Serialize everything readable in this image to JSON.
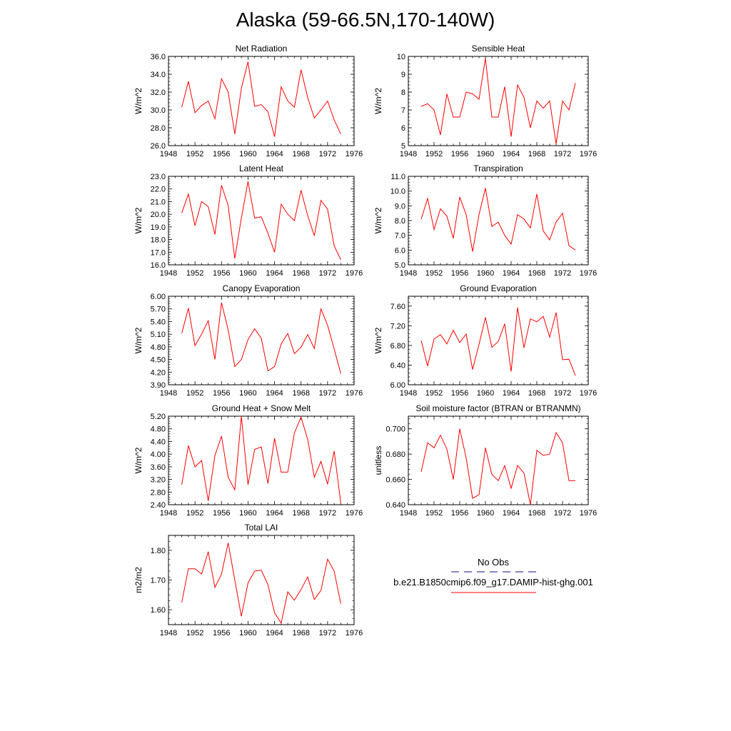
{
  "title": "Alaska (59-66.5N,170-140W)",
  "legend": {
    "items": [
      {
        "label": "No Obs",
        "color": "#3c3ca0",
        "style": "dashed"
      },
      {
        "label": "b.e21.B1850cmip6.f09_g17.DAMIP-hist-ghg.001",
        "color": "#ff0000",
        "style": "solid"
      }
    ]
  },
  "chart_data": [
    {
      "type": "line",
      "title": "Net Radiation",
      "ylabel": "W/m^2",
      "xlim": [
        1948,
        1976
      ],
      "ylim": [
        26.0,
        36.0
      ],
      "xticks": [
        "1948",
        "1952",
        "1956",
        "1960",
        "1964",
        "1968",
        "1972",
        "1976"
      ],
      "yticks": [
        "26.0",
        "28.0",
        "30.0",
        "32.0",
        "34.0",
        "36.0"
      ],
      "series": [
        {
          "color": "#ff0000",
          "x": [
            1950,
            1951,
            1952,
            1953,
            1954,
            1955,
            1956,
            1957,
            1958,
            1959,
            1960,
            1961,
            1962,
            1963,
            1964,
            1965,
            1966,
            1967,
            1968,
            1969,
            1970,
            1971,
            1972,
            1973,
            1974
          ],
          "values": [
            30.3,
            33.2,
            29.7,
            30.5,
            31.0,
            29.0,
            33.5,
            32.0,
            27.3,
            32.4,
            35.4,
            30.4,
            30.6,
            29.8,
            27.0,
            32.6,
            31.0,
            30.3,
            34.5,
            31.4,
            29.1,
            30.0,
            31.0,
            28.9,
            27.3
          ]
        }
      ]
    },
    {
      "type": "line",
      "title": "Sensible Heat",
      "ylabel": "W/m^2",
      "xlim": [
        1948,
        1976
      ],
      "ylim": [
        5,
        10
      ],
      "xticks": [
        "1948",
        "1952",
        "1956",
        "1960",
        "1964",
        "1968",
        "1972",
        "1976"
      ],
      "yticks": [
        "5",
        "6",
        "7",
        "8",
        "9",
        "10"
      ],
      "series": [
        {
          "color": "#ff0000",
          "x": [
            1950,
            1951,
            1952,
            1953,
            1954,
            1955,
            1956,
            1957,
            1958,
            1959,
            1960,
            1961,
            1962,
            1963,
            1964,
            1965,
            1966,
            1967,
            1968,
            1969,
            1970,
            1971,
            1972,
            1973,
            1974
          ],
          "values": [
            7.2,
            7.35,
            7.0,
            5.6,
            7.9,
            6.6,
            6.6,
            8.0,
            7.9,
            7.6,
            9.9,
            6.6,
            6.6,
            8.3,
            5.5,
            8.4,
            7.7,
            6.0,
            7.5,
            7.1,
            7.5,
            5.1,
            7.5,
            7.0,
            8.5
          ]
        }
      ]
    },
    {
      "type": "line",
      "title": "Latent Heat",
      "ylabel": "W/m^2",
      "xlim": [
        1948,
        1976
      ],
      "ylim": [
        16.0,
        23.0
      ],
      "xticks": [
        "1948",
        "1952",
        "1956",
        "1960",
        "1964",
        "1968",
        "1972",
        "1976"
      ],
      "yticks": [
        "16.0",
        "17.0",
        "18.0",
        "19.0",
        "20.0",
        "21.0",
        "22.0",
        "23.0"
      ],
      "series": [
        {
          "color": "#ff0000",
          "x": [
            1950,
            1951,
            1952,
            1953,
            1954,
            1955,
            1956,
            1957,
            1958,
            1959,
            1960,
            1961,
            1962,
            1963,
            1964,
            1965,
            1966,
            1967,
            1968,
            1969,
            1970,
            1971,
            1972,
            1973,
            1974
          ],
          "values": [
            20.1,
            21.6,
            19.1,
            21.0,
            20.6,
            18.4,
            22.3,
            20.7,
            16.5,
            19.7,
            22.6,
            19.7,
            19.8,
            18.5,
            17.0,
            20.8,
            20.0,
            19.5,
            21.9,
            19.9,
            18.3,
            21.1,
            20.4,
            17.5,
            16.4
          ]
        }
      ]
    },
    {
      "type": "line",
      "title": "Transpiration",
      "ylabel": "W/m^2",
      "xlim": [
        1948,
        1976
      ],
      "ylim": [
        5.0,
        11.0
      ],
      "xticks": [
        "1948",
        "1952",
        "1956",
        "1960",
        "1964",
        "1968",
        "1972",
        "1976"
      ],
      "yticks": [
        "5.0",
        "6.0",
        "7.0",
        "8.0",
        "9.0",
        "10.0",
        "11.0"
      ],
      "series": [
        {
          "color": "#ff0000",
          "x": [
            1950,
            1951,
            1952,
            1953,
            1954,
            1955,
            1956,
            1957,
            1958,
            1959,
            1960,
            1961,
            1962,
            1963,
            1964,
            1965,
            1966,
            1967,
            1968,
            1969,
            1970,
            1971,
            1972,
            1973,
            1974
          ],
          "values": [
            8.1,
            9.5,
            7.4,
            8.8,
            8.3,
            6.8,
            9.6,
            8.4,
            5.9,
            8.4,
            10.2,
            7.6,
            7.9,
            7.0,
            6.4,
            8.4,
            8.1,
            7.5,
            9.8,
            7.3,
            6.7,
            7.9,
            8.5,
            6.3,
            6.0
          ]
        }
      ]
    },
    {
      "type": "line",
      "title": "Canopy Evaporation",
      "ylabel": "W/m^2",
      "xlim": [
        1948,
        1976
      ],
      "ylim": [
        3.9,
        6.0
      ],
      "xticks": [
        "1948",
        "1952",
        "1956",
        "1960",
        "1964",
        "1968",
        "1972",
        "1976"
      ],
      "yticks": [
        "3.90",
        "4.20",
        "4.50",
        "4.80",
        "5.10",
        "5.40",
        "5.70",
        "6.00"
      ],
      "series": [
        {
          "color": "#ff0000",
          "x": [
            1950,
            1951,
            1952,
            1953,
            1954,
            1955,
            1956,
            1957,
            1958,
            1959,
            1960,
            1961,
            1962,
            1963,
            1964,
            1965,
            1966,
            1967,
            1968,
            1969,
            1970,
            1971,
            1972,
            1973,
            1974
          ],
          "values": [
            5.12,
            5.72,
            4.83,
            5.1,
            5.42,
            4.5,
            5.85,
            5.2,
            4.33,
            4.5,
            4.97,
            5.23,
            5.0,
            4.23,
            4.33,
            4.87,
            5.12,
            4.64,
            4.79,
            5.09,
            4.76,
            5.7,
            5.31,
            4.75,
            4.16
          ]
        }
      ]
    },
    {
      "type": "line",
      "title": "Ground Evaporation",
      "ylabel": "W/m^2",
      "xlim": [
        1948,
        1976
      ],
      "ylim": [
        6.0,
        7.8
      ],
      "xticks": [
        "1948",
        "1952",
        "1956",
        "1960",
        "1964",
        "1968",
        "1972",
        "1976"
      ],
      "yticks": [
        "6.00",
        "6.40",
        "6.80",
        "7.20",
        "7.60"
      ],
      "series": [
        {
          "color": "#ff0000",
          "x": [
            1950,
            1951,
            1952,
            1953,
            1954,
            1955,
            1956,
            1957,
            1958,
            1959,
            1960,
            1961,
            1962,
            1963,
            1964,
            1965,
            1966,
            1967,
            1968,
            1969,
            1970,
            1971,
            1972,
            1973,
            1974
          ],
          "values": [
            6.9,
            6.38,
            6.93,
            7.02,
            6.83,
            7.11,
            6.86,
            7.03,
            6.31,
            6.82,
            7.37,
            6.76,
            6.88,
            7.24,
            6.27,
            7.57,
            6.75,
            7.34,
            7.28,
            7.39,
            6.97,
            7.47,
            6.51,
            6.52,
            6.19
          ]
        }
      ]
    },
    {
      "type": "line",
      "title": "Ground Heat + Snow Melt",
      "ylabel": "W/m^2",
      "xlim": [
        1948,
        1976
      ],
      "ylim": [
        2.4,
        5.2
      ],
      "xticks": [
        "1948",
        "1952",
        "1956",
        "1960",
        "1964",
        "1968",
        "1972",
        "1976"
      ],
      "yticks": [
        "2.40",
        "2.80",
        "3.20",
        "3.60",
        "4.00",
        "4.40",
        "4.80",
        "5.20"
      ],
      "series": [
        {
          "color": "#ff0000",
          "x": [
            1950,
            1951,
            1952,
            1953,
            1954,
            1955,
            1956,
            1957,
            1958,
            1959,
            1960,
            1961,
            1962,
            1963,
            1964,
            1965,
            1966,
            1967,
            1968,
            1969,
            1970,
            1971,
            1972,
            1973,
            1974
          ],
          "values": [
            3.03,
            4.27,
            3.6,
            3.8,
            2.52,
            3.95,
            4.57,
            3.27,
            2.87,
            5.2,
            3.03,
            4.15,
            4.23,
            3.07,
            4.5,
            3.43,
            3.43,
            4.67,
            5.17,
            4.47,
            3.27,
            3.77,
            3.05,
            4.1,
            2.45
          ]
        }
      ]
    },
    {
      "type": "line",
      "title": "Soil moisture factor (BTRAN or BTRANMN)",
      "ylabel": "unitless",
      "xlim": [
        1948,
        1976
      ],
      "ylim": [
        0.64,
        0.71
      ],
      "xticks": [
        "1948",
        "1952",
        "1956",
        "1960",
        "1964",
        "1968",
        "1972",
        "1976"
      ],
      "yticks": [
        "0.640",
        "0.660",
        "0.680",
        "0.700"
      ],
      "series": [
        {
          "color": "#ff0000",
          "x": [
            1950,
            1951,
            1952,
            1953,
            1954,
            1955,
            1956,
            1957,
            1958,
            1959,
            1960,
            1961,
            1962,
            1963,
            1964,
            1965,
            1966,
            1967,
            1968,
            1969,
            1970,
            1971,
            1972,
            1973,
            1974
          ],
          "values": [
            0.666,
            0.689,
            0.685,
            0.695,
            0.684,
            0.66,
            0.7,
            0.677,
            0.645,
            0.648,
            0.685,
            0.664,
            0.659,
            0.671,
            0.653,
            0.671,
            0.665,
            0.64,
            0.683,
            0.679,
            0.68,
            0.697,
            0.689,
            0.659,
            0.659
          ]
        }
      ]
    },
    {
      "type": "line",
      "title": "Total LAI",
      "ylabel": "m2/m2",
      "xlim": [
        1948,
        1976
      ],
      "ylim": [
        1.55,
        1.85
      ],
      "xticks": [
        "1948",
        "1952",
        "1956",
        "1960",
        "1964",
        "1968",
        "1972",
        "1976"
      ],
      "yticks": [
        "1.60",
        "1.70",
        "1.80"
      ],
      "series": [
        {
          "color": "#ff0000",
          "x": [
            1950,
            1951,
            1952,
            1953,
            1954,
            1955,
            1956,
            1957,
            1958,
            1959,
            1960,
            1961,
            1962,
            1963,
            1964,
            1965,
            1966,
            1967,
            1968,
            1969,
            1970,
            1971,
            1972,
            1973,
            1974
          ],
          "values": [
            1.625,
            1.738,
            1.738,
            1.72,
            1.795,
            1.675,
            1.72,
            1.825,
            1.7,
            1.578,
            1.69,
            1.73,
            1.733,
            1.685,
            1.59,
            1.555,
            1.66,
            1.632,
            1.668,
            1.71,
            1.635,
            1.665,
            1.77,
            1.73,
            1.62
          ]
        }
      ]
    }
  ]
}
